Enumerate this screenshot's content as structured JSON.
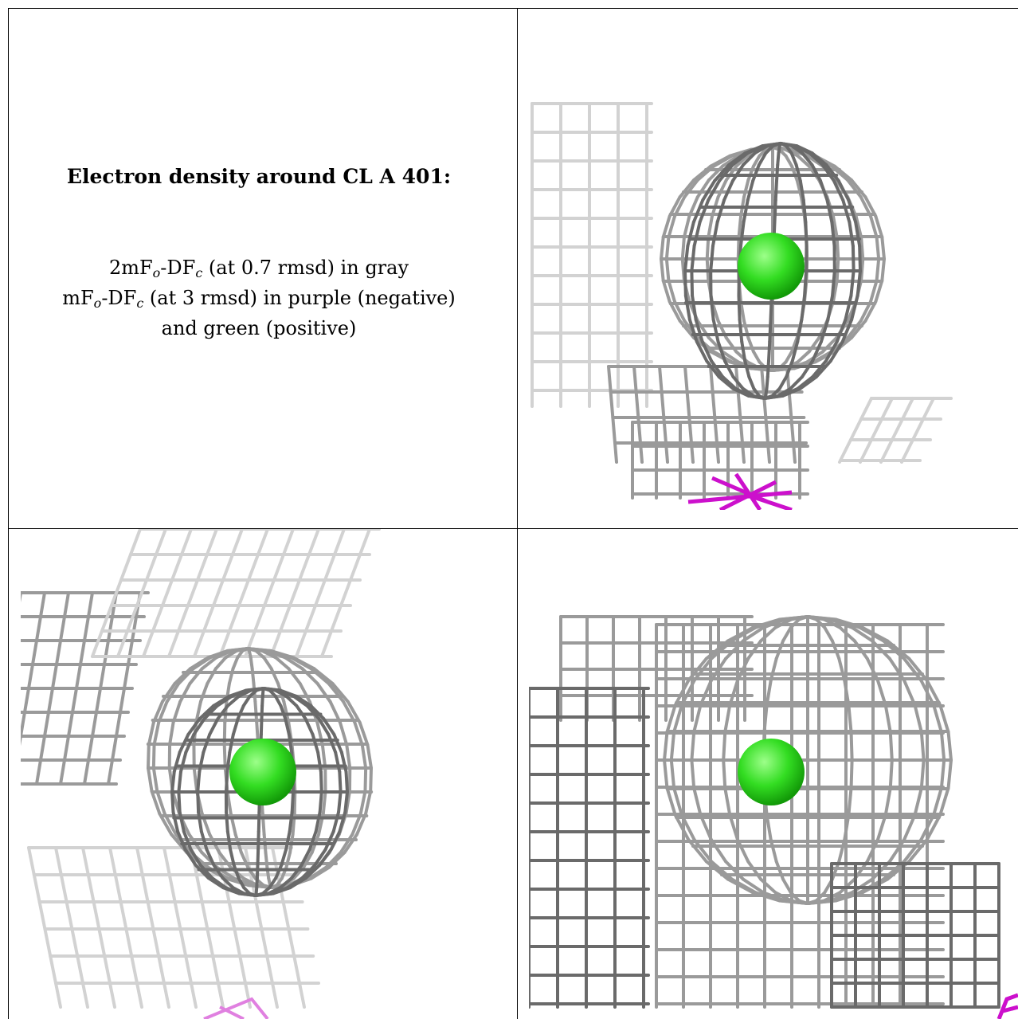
{
  "caption": {
    "title": "Electron density around CL A 401:",
    "line1_prefix": "2mF",
    "line1_sub1": "o",
    "line1_mid": "-DF",
    "line1_sub2": "c",
    "line1_suffix": " (at 0.7 rmsd) in gray",
    "line2_prefix": "mF",
    "line2_sub1": "o",
    "line2_mid": "-DF",
    "line2_sub2": "c",
    "line2_suffix": " (at 3 rmsd) in purple (negative)",
    "line3": "and green (positive)"
  },
  "colors": {
    "mesh_gray": "#9a9a9a",
    "mesh_light": "#d2d2d2",
    "mesh_dark": "#6a6a6a",
    "atom_green": "#33dd22",
    "density_purple": "#cc10cc"
  },
  "panels": [
    {
      "name": "view-top-right",
      "atom": "CL A 401"
    },
    {
      "name": "view-bottom-left",
      "atom": "CL A 401"
    },
    {
      "name": "view-bottom-right",
      "atom": "CL A 401"
    }
  ]
}
